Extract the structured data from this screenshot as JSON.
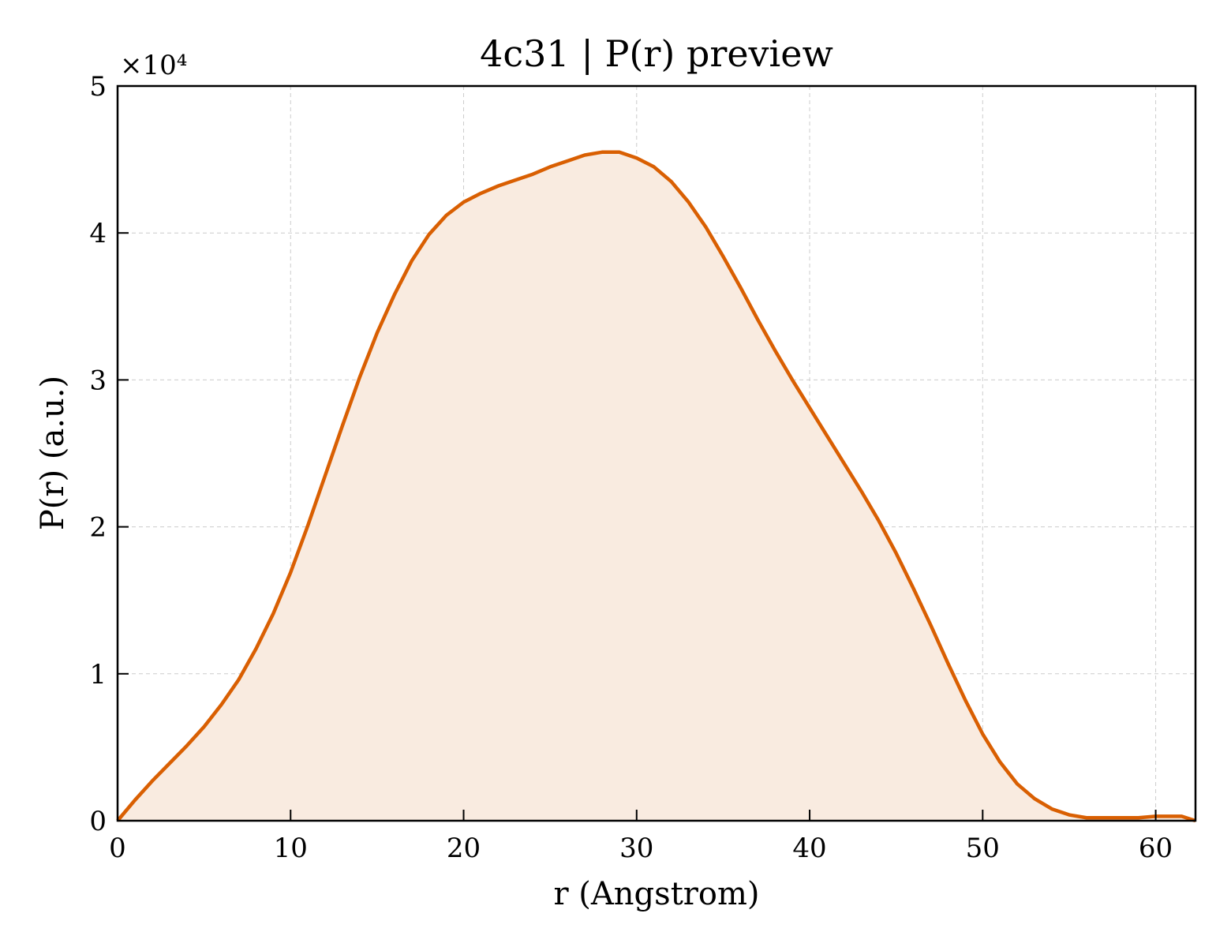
{
  "chart_data": {
    "type": "area",
    "title": "4c31 | P(r) preview",
    "xlabel": "r (Angstrom)",
    "ylabel": "P(r) (a.u.)",
    "y_multiplier_label": "×10⁴",
    "xlim": [
      0,
      62.3
    ],
    "ylim": [
      0,
      5
    ],
    "x_ticks": [
      0,
      10,
      20,
      30,
      40,
      50,
      60
    ],
    "y_ticks": [
      0,
      1,
      2,
      3,
      4,
      5
    ],
    "grid": true,
    "line_color": "#d95f02",
    "fill_color": "#f9ebe0",
    "series": [
      {
        "x": [
          0,
          1,
          2,
          3,
          4,
          5,
          6,
          7,
          8,
          9,
          10,
          11,
          12,
          13,
          14,
          15,
          16,
          17,
          18,
          19,
          20,
          21,
          22,
          23,
          24,
          25,
          26,
          27,
          28,
          29,
          30,
          31,
          32,
          33,
          34,
          35,
          36,
          37,
          38,
          39,
          40,
          41,
          42,
          43,
          44,
          45,
          46,
          47,
          48,
          49,
          50,
          51,
          52,
          53,
          54,
          55,
          56,
          57,
          58,
          59,
          60,
          61,
          61.5,
          62.3
        ],
        "y": [
          0,
          0.14,
          0.27,
          0.39,
          0.51,
          0.64,
          0.79,
          0.96,
          1.17,
          1.41,
          1.69,
          2.01,
          2.35,
          2.69,
          3.02,
          3.32,
          3.58,
          3.81,
          3.99,
          4.12,
          4.21,
          4.27,
          4.32,
          4.36,
          4.4,
          4.45,
          4.49,
          4.53,
          4.55,
          4.55,
          4.51,
          4.45,
          4.35,
          4.21,
          4.04,
          3.84,
          3.63,
          3.41,
          3.2,
          3.0,
          2.81,
          2.62,
          2.43,
          2.24,
          2.04,
          1.82,
          1.58,
          1.33,
          1.07,
          0.82,
          0.59,
          0.4,
          0.25,
          0.15,
          0.08,
          0.04,
          0.02,
          0.02,
          0.02,
          0.02,
          0.03,
          0.03,
          0.03,
          0
        ]
      }
    ]
  }
}
